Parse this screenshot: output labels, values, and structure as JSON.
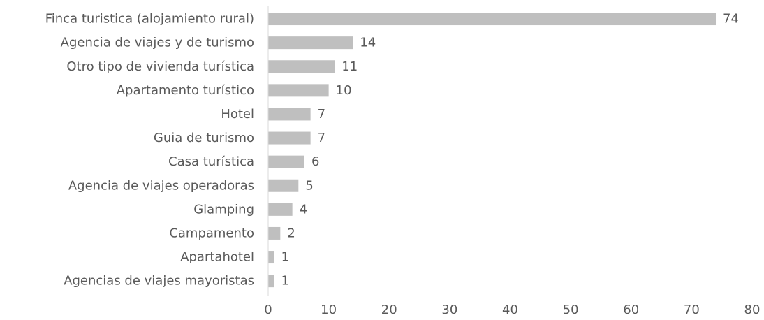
{
  "chart_data": {
    "type": "bar",
    "orientation": "horizontal",
    "categories": [
      "Finca turistica (alojamiento rural)",
      "Agencia de viajes y de turismo",
      "Otro tipo de vivienda turística",
      "Apartamento turístico",
      "Hotel",
      "Guia de turismo",
      "Casa turística",
      "Agencia de viajes operadoras",
      "Glamping",
      "Campamento",
      "Apartahotel",
      "Agencias de viajes mayoristas"
    ],
    "values": [
      74,
      14,
      11,
      10,
      7,
      7,
      6,
      5,
      4,
      2,
      1,
      1
    ],
    "xlim": [
      0,
      80
    ],
    "xticks": [
      0,
      10,
      20,
      30,
      40,
      50,
      60,
      70,
      80
    ],
    "title": "",
    "xlabel": "",
    "ylabel": "",
    "grid": false,
    "legend": "none",
    "colors": {
      "bar": "#bfbfbf",
      "text": "#595959",
      "axis": "#d9d9d9"
    }
  }
}
